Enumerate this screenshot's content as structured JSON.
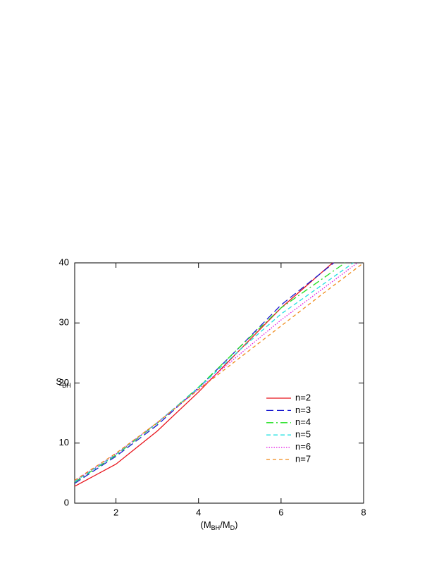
{
  "chart_data": {
    "type": "line",
    "xlabel": {
      "parts": [
        "(M",
        "BH",
        "/M",
        "D",
        ")"
      ]
    },
    "ylabel": {
      "main": "S",
      "sub": "BH"
    },
    "xlim": [
      1,
      8
    ],
    "ylim": [
      0,
      40
    ],
    "xticks": [
      2,
      4,
      6,
      8
    ],
    "yticks": [
      0,
      10,
      20,
      30,
      40
    ],
    "legend": "right",
    "series": [
      {
        "name": "n=2",
        "color": "#e8141c",
        "dash": "none",
        "x": [
          1,
          2,
          3,
          4,
          5,
          6,
          7.25
        ],
        "values": [
          2.8,
          6.5,
          12,
          18.5,
          25.5,
          32.5,
          40
        ]
      },
      {
        "name": "n=3",
        "color": "#1a1ad0",
        "dash": "10,5",
        "x": [
          1,
          2,
          3,
          4,
          5,
          6,
          7.28
        ],
        "values": [
          3.3,
          7.8,
          13,
          19.2,
          26,
          33,
          40
        ]
      },
      {
        "name": "n=4",
        "color": "#1ee01e",
        "dash": "10,4,2,4",
        "x": [
          1,
          2,
          3,
          4,
          5,
          6,
          7.55
        ],
        "values": [
          3.5,
          8,
          13.3,
          19.3,
          26,
          32.5,
          40
        ]
      },
      {
        "name": "n=5",
        "color": "#1ee0e0",
        "dash": "6,4",
        "x": [
          1,
          2,
          3,
          4,
          5,
          6,
          7.75
        ],
        "values": [
          3.6,
          8.1,
          13.4,
          19.2,
          25.5,
          31.5,
          40
        ]
      },
      {
        "name": "n=6",
        "color": "#e014e0",
        "dash": "1.5,2",
        "x": [
          1,
          2,
          3,
          4,
          5,
          6,
          7.85
        ],
        "values": [
          3.7,
          8.2,
          13.4,
          19,
          24.8,
          30.5,
          40
        ]
      },
      {
        "name": "n=7",
        "color": "#f08a1a",
        "dash": "5,4",
        "x": [
          1,
          2,
          3,
          4,
          5,
          6,
          7,
          8
        ],
        "values": [
          3.8,
          8.3,
          13.4,
          18.9,
          24.2,
          29.5,
          34.8,
          40
        ]
      }
    ]
  }
}
